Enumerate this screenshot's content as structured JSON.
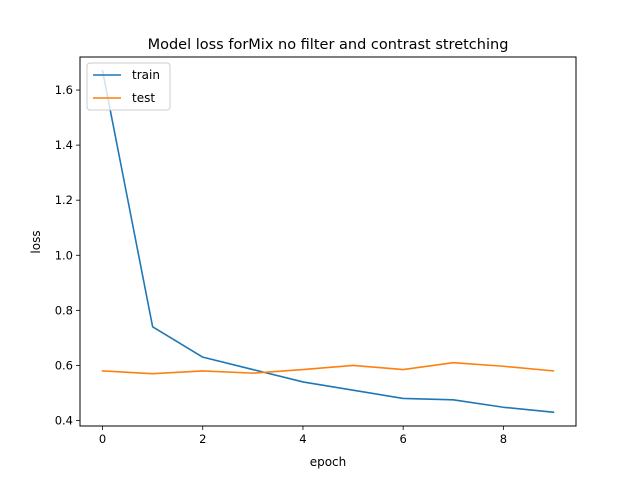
{
  "chart_data": {
    "type": "line",
    "title": "Model loss forMix no filter and contrast stretching",
    "xlabel": "epoch",
    "ylabel": "loss",
    "x": [
      0,
      1,
      2,
      3,
      4,
      5,
      6,
      7,
      8,
      9
    ],
    "xlim": [
      -0.45,
      9.45
    ],
    "ylim": [
      0.38,
      1.72
    ],
    "xticks": [
      "0",
      "2",
      "4",
      "6",
      "8"
    ],
    "yticks": [
      "0.4",
      "0.6",
      "0.8",
      "1.0",
      "1.2",
      "1.4",
      "1.6"
    ],
    "grid": false,
    "legend_position": "upper left",
    "series": [
      {
        "name": "train",
        "color": "#1f77b4",
        "values": [
          1.67,
          0.74,
          0.63,
          0.585,
          0.54,
          0.51,
          0.48,
          0.475,
          0.448,
          0.43
        ]
      },
      {
        "name": "test",
        "color": "#ff7f0e",
        "values": [
          0.58,
          0.57,
          0.58,
          0.572,
          0.585,
          0.6,
          0.585,
          0.61,
          0.597,
          0.58
        ]
      }
    ]
  }
}
